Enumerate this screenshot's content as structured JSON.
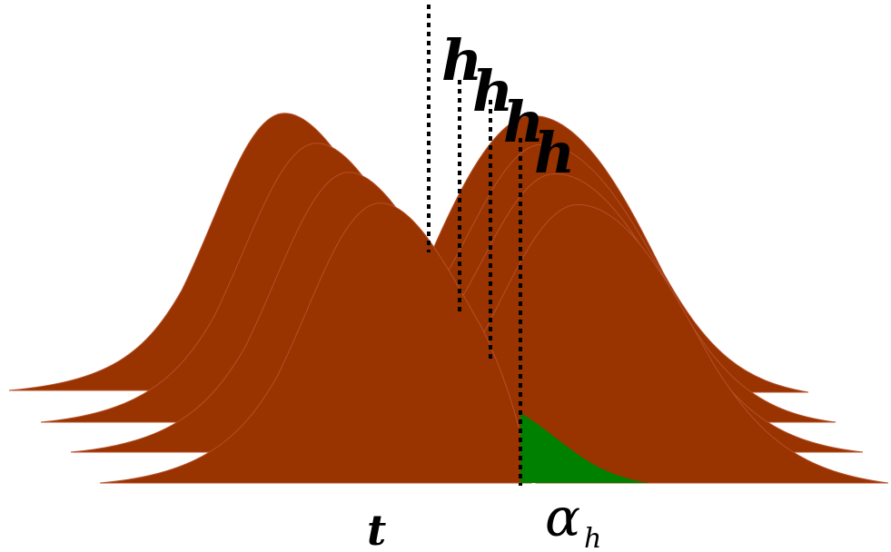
{
  "colors": {
    "distribution_fill": "#993300",
    "distribution_edge": "#b5502a",
    "rejection_region": "#008000",
    "threshold_line": "#000000",
    "background": "#ffffff"
  },
  "labels": {
    "h_marks": [
      "h",
      "h",
      "h",
      "h"
    ],
    "t": "t",
    "alpha": "α",
    "alpha_subscript": "h"
  }
}
